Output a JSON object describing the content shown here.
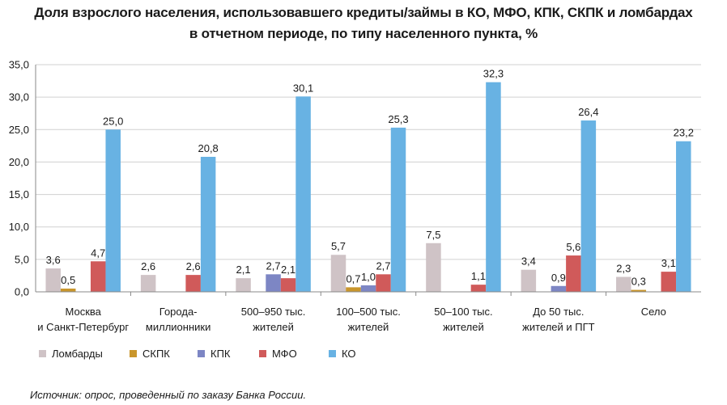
{
  "chart_data": {
    "type": "bar",
    "title_lines": [
      "Доля взрослого населения, использовавшего кредиты/займы в КО, МФО, КПК, СКПК и ломбардах",
      "в отчетном периоде, по типу населенного пункта, %"
    ],
    "categories": [
      [
        "Москва",
        "и Санкт-Петербург"
      ],
      [
        "Города-",
        "миллионники"
      ],
      [
        "500–950 тыс.",
        "жителей"
      ],
      [
        "100–500 тыс.",
        "жителей"
      ],
      [
        "50–100 тыс.",
        "жителей"
      ],
      [
        "До 50 тыс.",
        "жителей и ПГТ"
      ],
      [
        "Село"
      ]
    ],
    "series": [
      {
        "name": "Ломбарды",
        "color": "#cfc3c6",
        "values": [
          3.6,
          2.6,
          2.1,
          5.7,
          7.5,
          3.4,
          2.3
        ],
        "labels": [
          "3,6",
          "2,6",
          "2,1",
          "5,7",
          "7,5",
          "3,4",
          "2,3"
        ]
      },
      {
        "name": "СКПК",
        "color": "#c9962c",
        "values": [
          0.5,
          null,
          null,
          0.7,
          null,
          null,
          0.3
        ],
        "labels": [
          "0,5",
          "",
          "",
          "0,7",
          "",
          "",
          "0,3"
        ]
      },
      {
        "name": "КПК",
        "color": "#7d86c4",
        "values": [
          null,
          null,
          2.7,
          1.0,
          null,
          0.9,
          null
        ],
        "labels": [
          "",
          "",
          "2,7",
          "1,0",
          "",
          "0,9",
          ""
        ]
      },
      {
        "name": "МФО",
        "color": "#d05a5a",
        "values": [
          4.7,
          2.6,
          2.1,
          2.7,
          1.1,
          5.6,
          3.1
        ],
        "labels": [
          "4,7",
          "2,6",
          "2,1",
          "2,7",
          "1,1",
          "5,6",
          "3,1"
        ]
      },
      {
        "name": "КО",
        "color": "#68b2e3",
        "values": [
          25.0,
          20.8,
          30.1,
          25.3,
          32.3,
          26.4,
          23.2
        ],
        "labels": [
          "25,0",
          "20,8",
          "30,1",
          "25,3",
          "32,3",
          "26,4",
          "23,2"
        ]
      }
    ],
    "ylim": [
      0,
      35
    ],
    "yticks": [
      "0,0",
      "5,0",
      "10,0",
      "15,0",
      "20,0",
      "25,0",
      "30,0",
      "35,0"
    ],
    "grid": true,
    "legend": "bottom-left"
  },
  "source": "Источник: опрос, проведенный по заказу Банка России."
}
